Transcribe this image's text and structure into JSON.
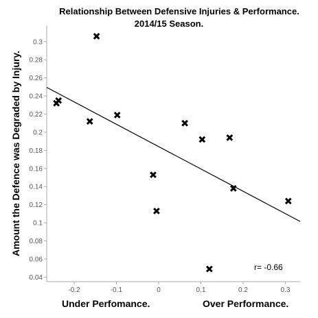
{
  "chart_data": {
    "type": "scatter",
    "title": "Relationship Between Defensive Injuries & Performance.",
    "subtitle": "2014/15 Season.",
    "xlabel_left": "Under Perfomance.",
    "xlabel_right": "Over Performance.",
    "ylabel": "Amount the Defence was Degraded by Injury.",
    "xlim": [
      -0.265,
      0.335
    ],
    "ylim": [
      0.035,
      0.318
    ],
    "x_ticks": [
      -0.2,
      -0.1,
      0,
      0.1,
      0.2,
      0.3
    ],
    "x_tick_labels": [
      "-0.2",
      "-0.1",
      "0",
      "0.1",
      "0.2",
      "0.3"
    ],
    "y_ticks": [
      0.04,
      0.06,
      0.08,
      0.1,
      0.12,
      0.14,
      0.16,
      0.18,
      0.2,
      0.22,
      0.24,
      0.26,
      0.28,
      0.3
    ],
    "y_tick_labels": [
      "0.04",
      "0.06",
      "0.08",
      "0.1",
      "0.12",
      "0.14",
      "0.16",
      "0.18",
      "0.2",
      "0.22",
      "0.24",
      "0.26",
      "0.28",
      "0.3"
    ],
    "grid": false,
    "legend": "none",
    "marker": "x",
    "points": [
      {
        "x": -0.147,
        "y": 0.306
      },
      {
        "x": -0.237,
        "y": 0.235
      },
      {
        "x": -0.242,
        "y": 0.232
      },
      {
        "x": -0.163,
        "y": 0.212
      },
      {
        "x": -0.098,
        "y": 0.219
      },
      {
        "x": 0.062,
        "y": 0.21
      },
      {
        "x": 0.103,
        "y": 0.192
      },
      {
        "x": 0.168,
        "y": 0.194
      },
      {
        "x": -0.013,
        "y": 0.153
      },
      {
        "x": 0.177,
        "y": 0.138
      },
      {
        "x": -0.005,
        "y": 0.113
      },
      {
        "x": 0.307,
        "y": 0.124
      },
      {
        "x": 0.12,
        "y": 0.049
      }
    ],
    "trendline": {
      "x": [
        -0.265,
        0.335
      ],
      "y": [
        0.2495,
        0.1015
      ]
    },
    "annotation": "r= -0.66"
  }
}
